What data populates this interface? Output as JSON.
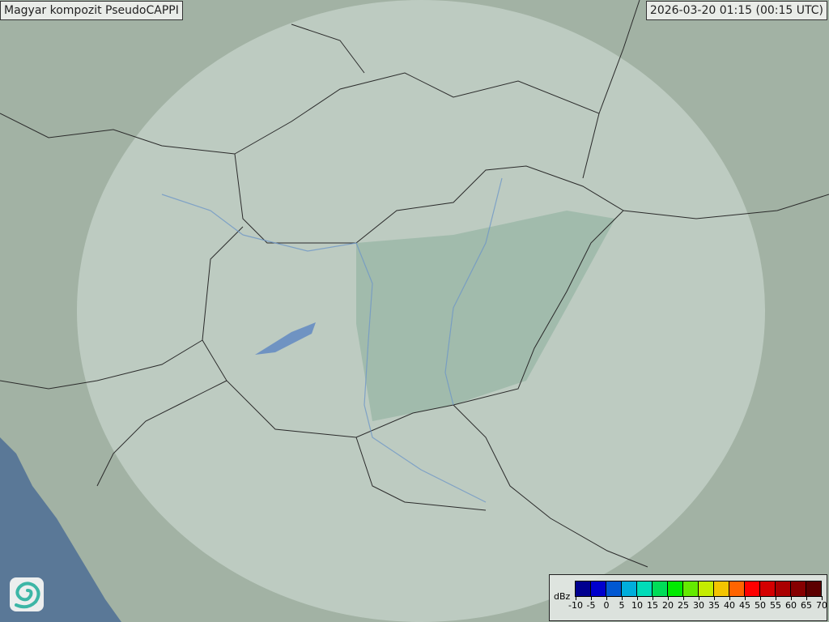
{
  "title": "Magyar kompozit  PseudoCAPPI",
  "timestamp": "2026-03-20 01:15 (00:15 UTC)",
  "legend": {
    "unit": "dBz",
    "ticks": [
      "-10",
      "-5",
      "0",
      "5",
      "10",
      "15",
      "20",
      "25",
      "30",
      "35",
      "40",
      "45",
      "50",
      "55",
      "60",
      "65",
      "70"
    ],
    "colors": [
      "#00008f",
      "#0000cd",
      "#0058d2",
      "#00aedc",
      "#00dcb8",
      "#00dc58",
      "#00ea00",
      "#64ea00",
      "#c4ec00",
      "#f4c400",
      "#ff6400",
      "#ff0000",
      "#d40000",
      "#aa0000",
      "#860000",
      "#5c0000"
    ]
  },
  "colors": {
    "land": "#9fb0a3",
    "radar_coverage": "#c5d4cc",
    "hungary_plain": "#8fb0a2",
    "sea": "#5a7897",
    "border": "#2a2a2a",
    "river": "#6f97c7"
  },
  "logo": "omsz-swirl-logo"
}
